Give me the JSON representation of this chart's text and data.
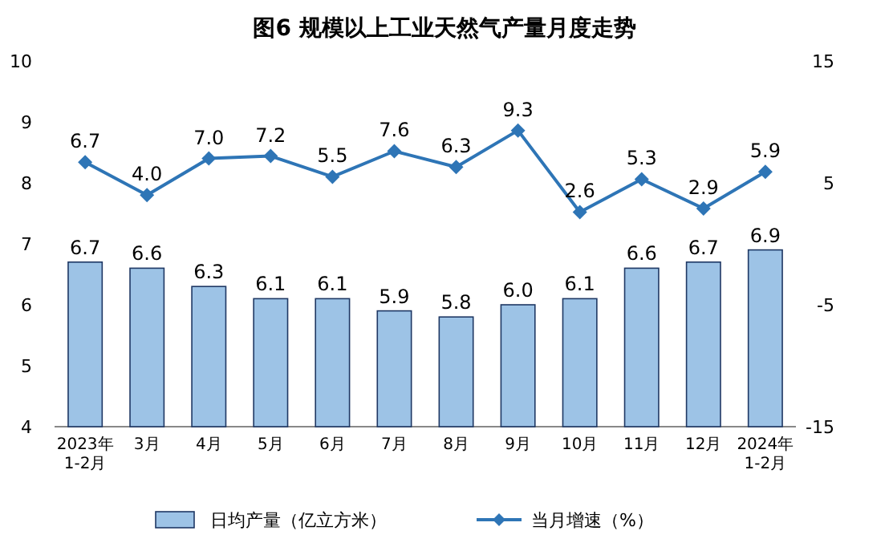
{
  "chart_data": {
    "type": "bar",
    "title": "图6 规模以上工业天然气产量月度走势",
    "categories": [
      "2023年\n1-2月",
      "3月",
      "4月",
      "5月",
      "6月",
      "7月",
      "8月",
      "9月",
      "10月",
      "11月",
      "12月",
      "2024年\n1-2月"
    ],
    "series": [
      {
        "name": "日均产量（亿立方米）",
        "color": "#9dc3e6",
        "values": [
          6.7,
          6.6,
          6.3,
          6.1,
          6.1,
          5.9,
          5.8,
          6.0,
          6.1,
          6.6,
          6.7,
          6.9
        ],
        "value_labels": [
          "6.7",
          "6.6",
          "6.3",
          "6.1",
          "6.1",
          "5.9",
          "5.8",
          "6.0",
          "6.1",
          "6.6",
          "6.7",
          "6.9"
        ]
      },
      {
        "name": "当月增速（%）",
        "type": "line",
        "axis": "y2",
        "color": "#2e75b6",
        "marker": "diamond",
        "values": [
          6.7,
          4.0,
          7.0,
          7.2,
          5.5,
          7.6,
          6.3,
          9.3,
          2.6,
          5.3,
          2.9,
          5.9
        ],
        "value_labels": [
          "6.7",
          "4.0",
          "7.0",
          "7.2",
          "5.5",
          "7.6",
          "6.3",
          "9.3",
          "2.6",
          "5.3",
          "2.9",
          "5.9"
        ]
      }
    ],
    "ylim": [
      4,
      10
    ],
    "yticks": [
      4,
      5,
      6,
      7,
      8,
      9,
      10
    ],
    "y2lim": [
      -15,
      15
    ],
    "y2ticks": [
      -15,
      -5,
      5,
      15
    ],
    "legend": "bottom",
    "grid": false
  }
}
